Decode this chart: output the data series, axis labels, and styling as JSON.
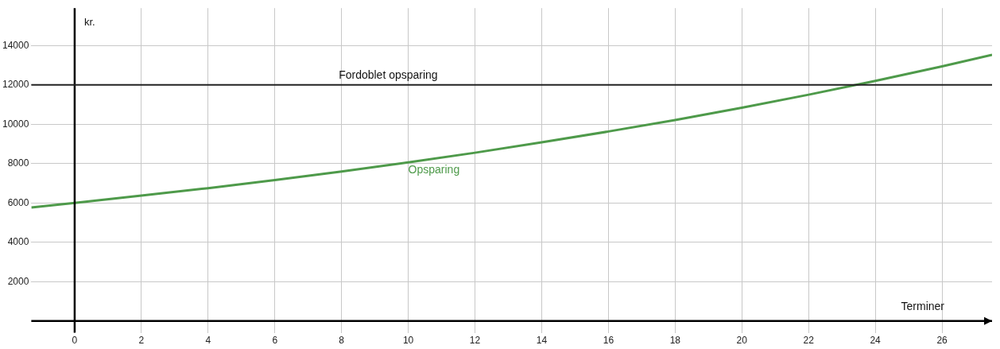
{
  "chart_data": {
    "type": "line",
    "xlabel": "Terminer",
    "ylabel": "kr.",
    "x": [
      -1.3,
      0,
      2,
      4,
      6,
      8,
      10,
      12,
      14,
      16,
      18,
      20,
      22,
      24,
      26,
      27.5
    ],
    "series": [
      {
        "name": "Opsparing",
        "color": "#4e9a4a",
        "values": [
          5770,
          6000,
          6370,
          6750,
          7160,
          7600,
          8060,
          8550,
          9080,
          9630,
          10210,
          10840,
          11500,
          12200,
          12940,
          13530
        ]
      }
    ],
    "ref_lines": [
      {
        "axis": "y",
        "value": 12000,
        "label": "Fordoblet opsparing",
        "color": "#222222"
      }
    ],
    "xlim": [
      -1.3,
      27.5
    ],
    "ylim": [
      -600,
      15900
    ],
    "xticks": [
      0,
      2,
      4,
      6,
      8,
      10,
      12,
      14,
      16,
      18,
      20,
      22,
      24,
      26
    ],
    "yticks": [
      2000,
      4000,
      6000,
      8000,
      10000,
      12000,
      14000
    ],
    "grid": true,
    "legend": false,
    "marker": "none",
    "line_style": "solid"
  }
}
